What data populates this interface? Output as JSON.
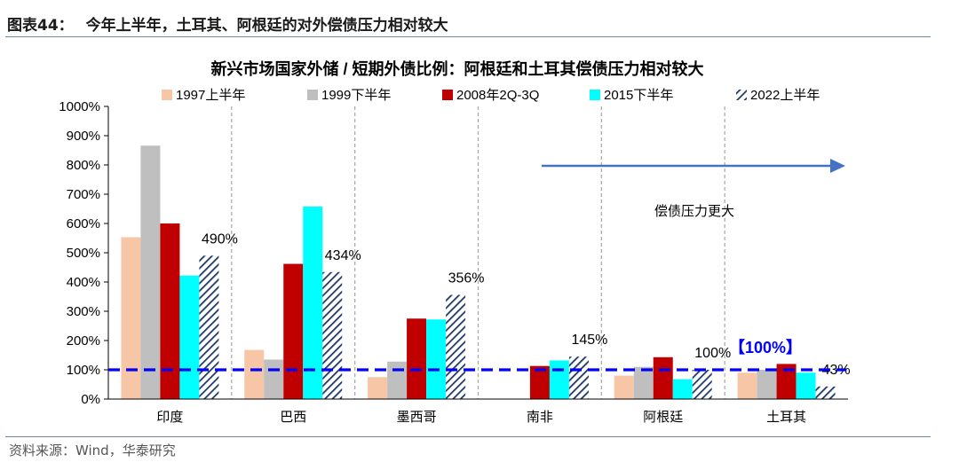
{
  "figure": {
    "number": "图表44：",
    "caption": "今年上半年，土耳其、阿根廷的对外偿债压力相对较大"
  },
  "source_text": "资料来源：Wind，华泰研究",
  "chart_data": {
    "type": "bar",
    "title": "新兴市场国家外储 / 短期外债比例：阿根廷和土耳其偿债压力相对较大",
    "categories": [
      "印度",
      "巴西",
      "墨西哥",
      "南非",
      "阿根廷",
      "土耳其"
    ],
    "series": [
      {
        "name": "1997上半年",
        "color": "#f7c6a6",
        "pattern": "solid",
        "values": [
          553,
          168,
          75,
          null,
          80,
          90
        ]
      },
      {
        "name": "1999下半年",
        "color": "#bfbfbf",
        "pattern": "solid",
        "values": [
          866,
          135,
          128,
          null,
          110,
          100
        ]
      },
      {
        "name": "2008年2Q-3Q",
        "color": "#c00000",
        "pattern": "solid",
        "values": [
          600,
          462,
          275,
          113,
          143,
          120
        ]
      },
      {
        "name": "2015下半年",
        "color": "#00ffff",
        "pattern": "solid",
        "values": [
          422,
          658,
          272,
          132,
          68,
          90
        ]
      },
      {
        "name": "2022上半年",
        "color": "#1f3864",
        "pattern": "hatched",
        "values": [
          490,
          434,
          356,
          145,
          100,
          43
        ]
      }
    ],
    "data_labels": [
      "490%",
      "434%",
      "356%",
      "145%",
      "100%",
      "43%"
    ],
    "yticks": [
      "0%",
      "100%",
      "200%",
      "300%",
      "400%",
      "500%",
      "600%",
      "700%",
      "800%",
      "900%",
      "1000%"
    ],
    "ylim": [
      0,
      1000
    ],
    "reference_line": {
      "value": 100,
      "color": "#0000ff",
      "style": "dashed"
    },
    "highlight_label": "【100%】",
    "arrow_annotation": "偿债压力更大",
    "arrow_color": "#4472c4",
    "legend_position": "top"
  }
}
